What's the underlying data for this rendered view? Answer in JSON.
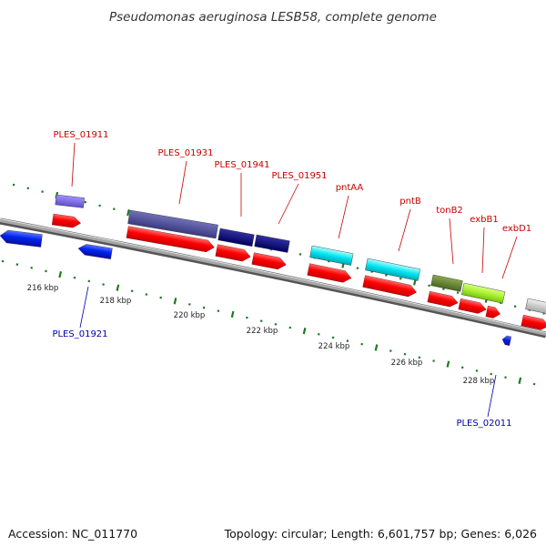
{
  "title": "Pseudomonas aeruginosa LESB58, complete genome",
  "footer": {
    "accession": "Accession: NC_011770",
    "topology": "Topology: circular; Length: 6,601,757 bp; Genes: 6,026"
  },
  "colors": {
    "label_red": "#c80000",
    "label_blue": "#0000aa",
    "tick_green": "#1e7a1e",
    "backbone": "#8a8a8a",
    "forward_arrow": "#ff0000",
    "reverse_arrow": "#0022ee"
  },
  "scale_labels": [
    "216 kbp",
    "218 kbp",
    "220 kbp",
    "222 kbp",
    "224 kbp",
    "226 kbp",
    "228 kbp"
  ],
  "gene_labels_top": [
    "PLES_01911",
    "PLES_01931",
    "PLES_01941",
    "PLES_01951",
    "pntAA",
    "pntB",
    "tonB2",
    "exbB1",
    "exbD1"
  ],
  "gene_labels_bottom": [
    "PLES_01921",
    "PLES_02011"
  ]
}
